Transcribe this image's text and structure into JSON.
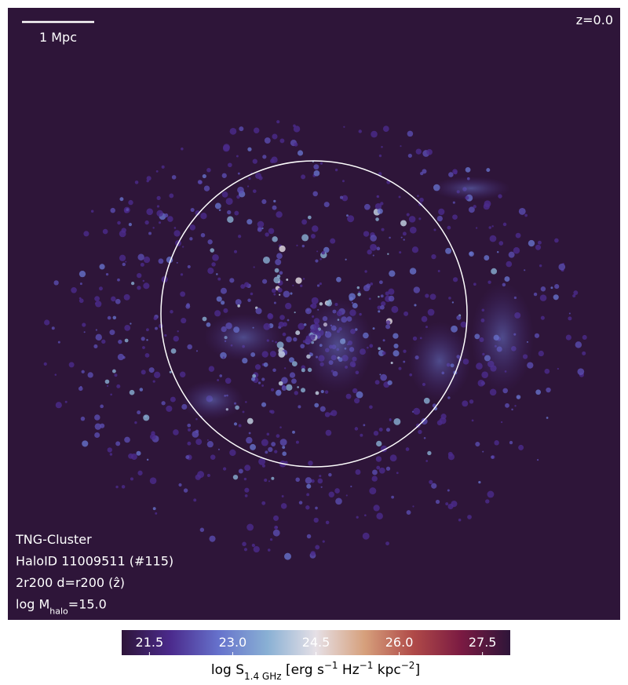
{
  "panel": {
    "redshift": "z=0.0",
    "scale_bar": "1 Mpc",
    "info": [
      [
        "TNG-Cluster"
      ],
      [
        "HaloID 11009511 (#115)"
      ],
      [
        "2r200 d=r200 (ẑ)"
      ],
      [
        "log M",
        "halo",
        "=15.0"
      ]
    ]
  },
  "colorbar": {
    "range": [
      21,
      28
    ],
    "ticks": [
      21.5,
      {
        "value": 23,
        "label": "23.0"
      },
      24.5,
      {
        "value": 26,
        "label": "26.0"
      },
      27.5
    ],
    "colors": [
      "#2e1539",
      "#4b2a8c",
      "#6672cc",
      "#89b0d4",
      "#e6e0e6",
      "#d6a07c",
      "#b04a48",
      "#7a1a42",
      "#2e1539"
    ],
    "label": [
      "log S",
      "1.4 GHz",
      " [erg s",
      "−1",
      " Hz",
      "−1",
      " kpc",
      "−2",
      "]"
    ]
  }
}
